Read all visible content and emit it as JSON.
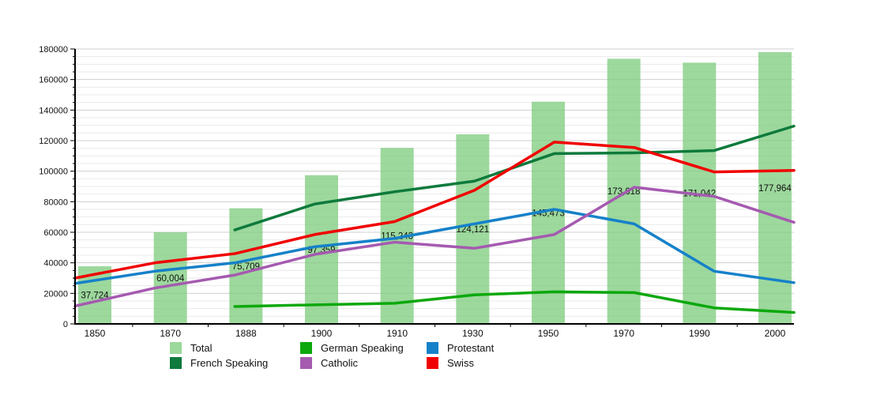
{
  "chart_data": {
    "type": "bar",
    "subtype": "bar-line-combo",
    "title": "",
    "categories": [
      "1850",
      "1870",
      "1888",
      "1900",
      "1910",
      "1930",
      "1950",
      "1970",
      "1990",
      "2000"
    ],
    "ylim": [
      0,
      180000
    ],
    "y_major_step": 20000,
    "y_minor_step": 5000,
    "grid": "horizontal",
    "legend_position": "bottom",
    "bar_series": {
      "name": "Total",
      "color": "#7ccb7c",
      "values": [
        37724,
        60004,
        75709,
        97359,
        115243,
        124121,
        145473,
        173618,
        171042,
        177964
      ],
      "labels": [
        "37,724",
        "60,004",
        "75,709",
        "97,359",
        "115,243",
        "124,121",
        "145,473",
        "173,618",
        "171,042",
        "177,964"
      ]
    },
    "line_series": [
      {
        "name": "French Speaking",
        "color": "#0e7a3c",
        "values": [
          null,
          null,
          61500,
          78500,
          86500,
          93500,
          111500,
          112000,
          113500,
          129500
        ]
      },
      {
        "name": "German Speaking",
        "color": "#0ca80c",
        "values": [
          null,
          null,
          11400,
          12500,
          13500,
          19000,
          21000,
          20500,
          10500,
          7500
        ]
      },
      {
        "name": "Protestant",
        "color": "#1581c9",
        "values": [
          26500,
          34500,
          40000,
          50500,
          56000,
          65500,
          75000,
          65500,
          34500,
          27000
        ]
      },
      {
        "name": "Catholic",
        "color": "#a55ab0",
        "values": [
          11700,
          23500,
          32000,
          45500,
          53500,
          49500,
          58500,
          89500,
          83500,
          66500
        ]
      },
      {
        "name": "Swiss",
        "color": "#f00000",
        "values": [
          30000,
          40000,
          46000,
          58500,
          67000,
          87500,
          119000,
          115500,
          99500,
          100500
        ]
      }
    ]
  },
  "legend": {
    "items": [
      {
        "label": "Total",
        "color": "#9bd89b"
      },
      {
        "label": "German Speaking",
        "color": "#0ca80c"
      },
      {
        "label": "Protestant",
        "color": "#1581c9"
      },
      {
        "label": "French Speaking",
        "color": "#0e7a3c"
      },
      {
        "label": "Catholic",
        "color": "#a55ab0"
      },
      {
        "label": "Swiss",
        "color": "#f00000"
      }
    ]
  }
}
